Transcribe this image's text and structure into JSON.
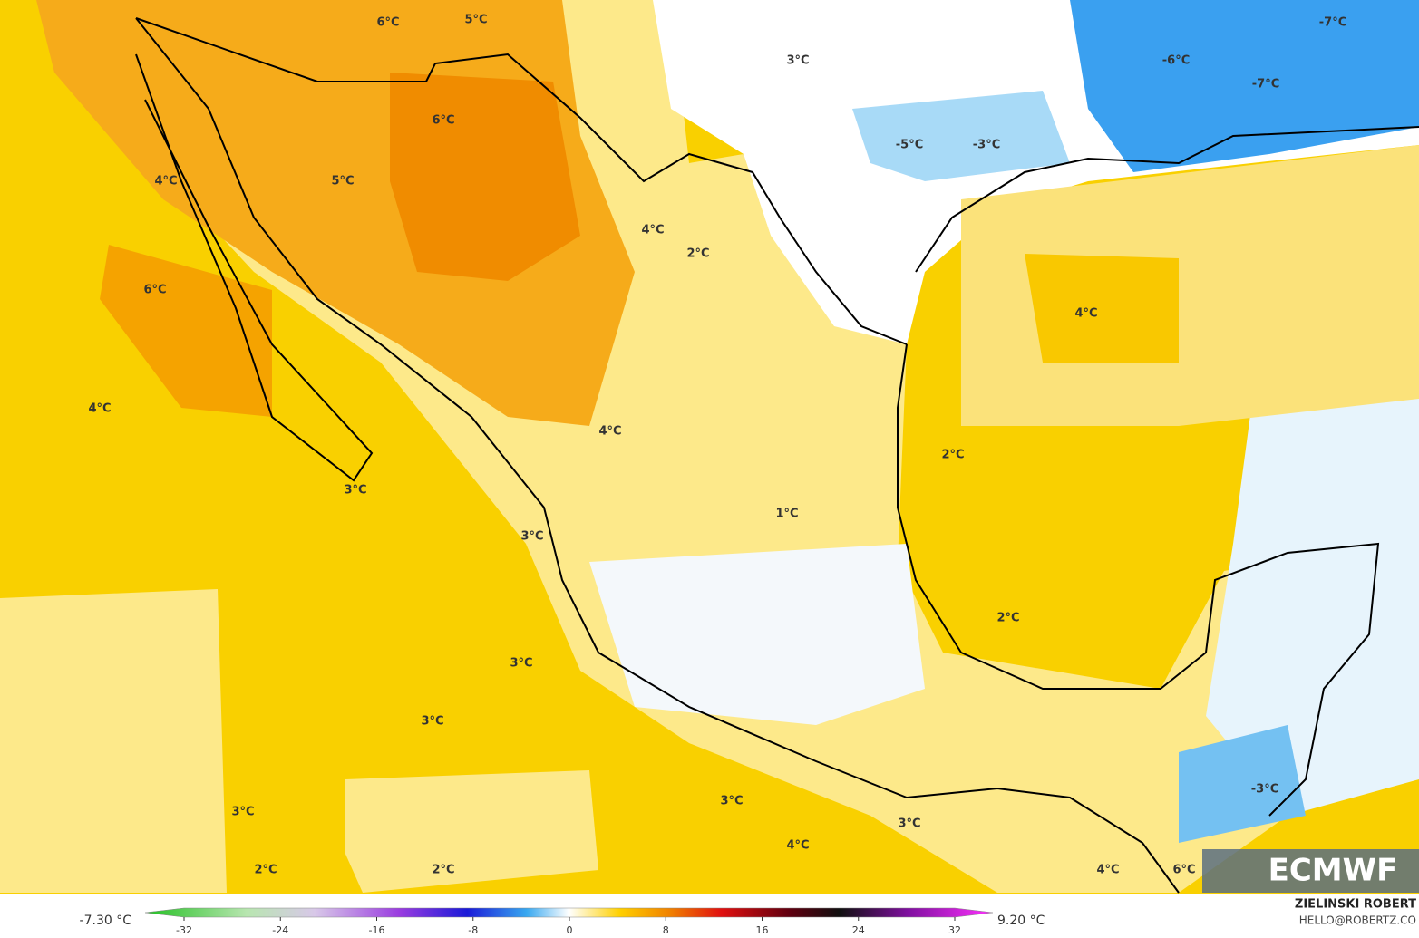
{
  "map": {
    "labels": [
      "6°C",
      "5°C",
      "3°C",
      "-6°C",
      "-7°C",
      "-7°C",
      "6°C",
      "-5°C",
      "-3°C",
      "4°C",
      "5°C",
      "4°C",
      "2°C",
      "6°C",
      "4°C",
      "4°C",
      "4°C",
      "2°C",
      "3°C",
      "1°C",
      "3°C",
      "2°C",
      "3°C",
      "3°C",
      "3°C",
      "3°C",
      "3°C",
      "-3°C",
      "4°C",
      "2°C",
      "2°C",
      "4°C",
      "6°C"
    ]
  },
  "colorbar": {
    "min_label": "-7.30 °C",
    "max_label": "9.20 °C",
    "ticks": [
      -32,
      -24,
      -16,
      -8,
      0,
      8,
      16,
      24,
      32
    ]
  },
  "credits": {
    "author": "ZIELINSKI ROBERT",
    "email": "HELLO@ROBERTZ.CO"
  },
  "logo": "ECMWF"
}
